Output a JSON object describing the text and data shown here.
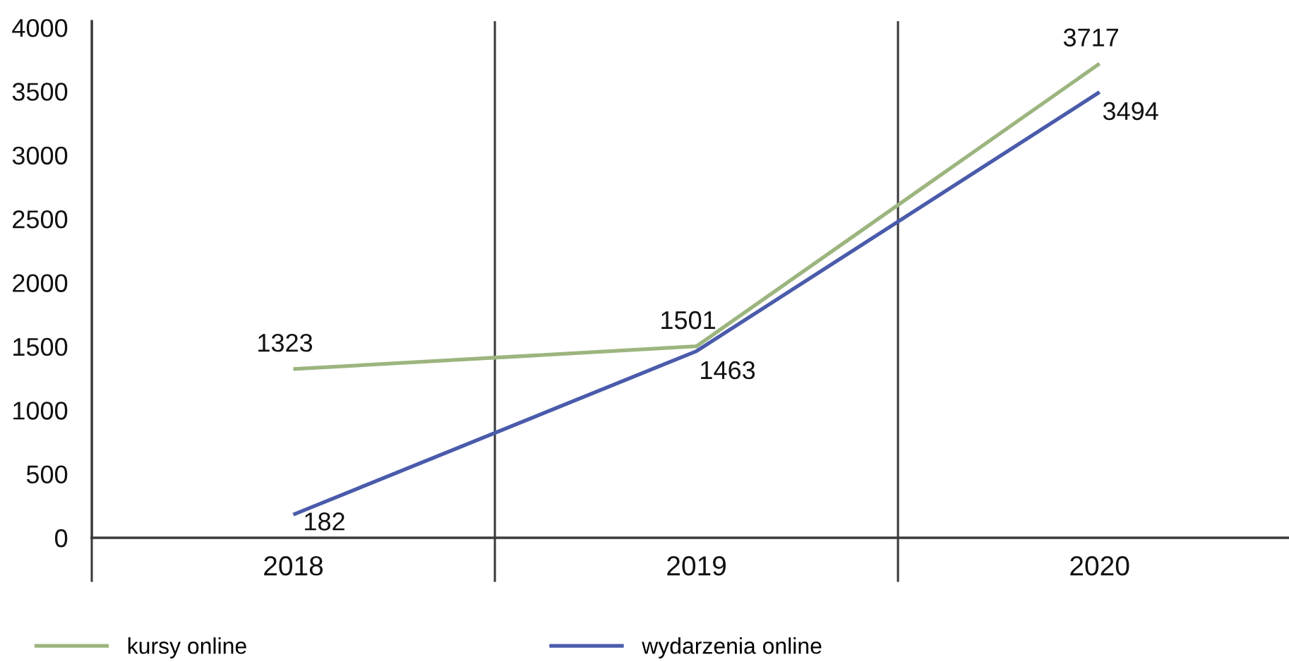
{
  "chart_data": {
    "type": "line",
    "categories": [
      "2018",
      "2019",
      "2020"
    ],
    "series": [
      {
        "name": "kursy online",
        "color": "#9cb57f",
        "values": [
          1323,
          1501,
          3717
        ]
      },
      {
        "name": "wydarzenia online",
        "color": "#4a5bab",
        "values": [
          182,
          1463,
          3494
        ]
      }
    ],
    "ylim": [
      0,
      4050
    ],
    "yticks": [
      0,
      500,
      1000,
      1500,
      2000,
      2500,
      3000,
      3500,
      4000
    ],
    "data_labels": true,
    "grid": "x",
    "legend": "bottom",
    "marker": "none",
    "line_style": "solid"
  }
}
